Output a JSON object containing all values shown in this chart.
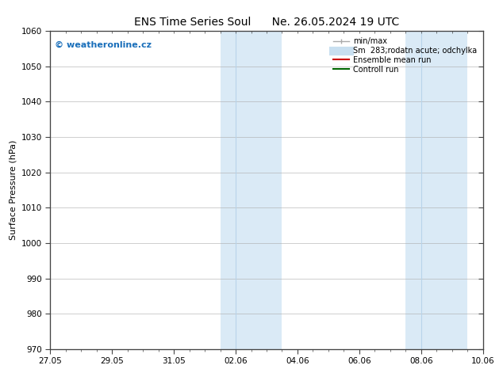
{
  "title": "ENS Time Series Soul      Ne. 26.05.2024 19 UTC",
  "ylabel": "Surface Pressure (hPa)",
  "ylim": [
    970,
    1060
  ],
  "yticks": [
    970,
    980,
    990,
    1000,
    1010,
    1020,
    1030,
    1040,
    1050,
    1060
  ],
  "total_days": 14,
  "xtick_labels": [
    "27.05",
    "29.05",
    "31.05",
    "02.06",
    "04.06",
    "06.06",
    "08.06",
    "10.06"
  ],
  "xtick_positions_days": [
    0,
    2,
    4,
    6,
    8,
    10,
    12,
    14
  ],
  "shaded_regions": [
    {
      "start_day": 5.5,
      "end_day": 6.0,
      "color": "#daeaf6"
    },
    {
      "start_day": 6.0,
      "end_day": 7.5,
      "color": "#daeaf6"
    },
    {
      "start_day": 11.5,
      "end_day": 12.0,
      "color": "#daeaf6"
    },
    {
      "start_day": 12.0,
      "end_day": 13.5,
      "color": "#daeaf6"
    }
  ],
  "shaded_bands": [
    {
      "start_day": 5.5,
      "end_day": 7.5
    },
    {
      "start_day": 11.5,
      "end_day": 13.5
    }
  ],
  "divider_lines": [
    6.0,
    12.0
  ],
  "watermark_text": "© weatheronline.cz",
  "watermark_color": "#1a6fba",
  "legend_entries": [
    {
      "label": "min/max",
      "color": "#aaaaaa",
      "lw": 1.0,
      "ls": "-",
      "type": "errorbar"
    },
    {
      "label": "Sm  283;rodatn acute; odchylka",
      "color": "#c8dff0",
      "lw": 8,
      "ls": "-",
      "type": "thick"
    },
    {
      "label": "Ensemble mean run",
      "color": "#cc0000",
      "lw": 1.5,
      "ls": "-",
      "type": "line"
    },
    {
      "label": "Controll run",
      "color": "#006600",
      "lw": 1.5,
      "ls": "-",
      "type": "line"
    }
  ],
  "background_color": "#ffffff",
  "axes_bg_color": "#ffffff",
  "grid_color": "#aaaaaa",
  "spine_color": "#444444",
  "title_fontsize": 10,
  "label_fontsize": 8,
  "tick_fontsize": 7.5
}
